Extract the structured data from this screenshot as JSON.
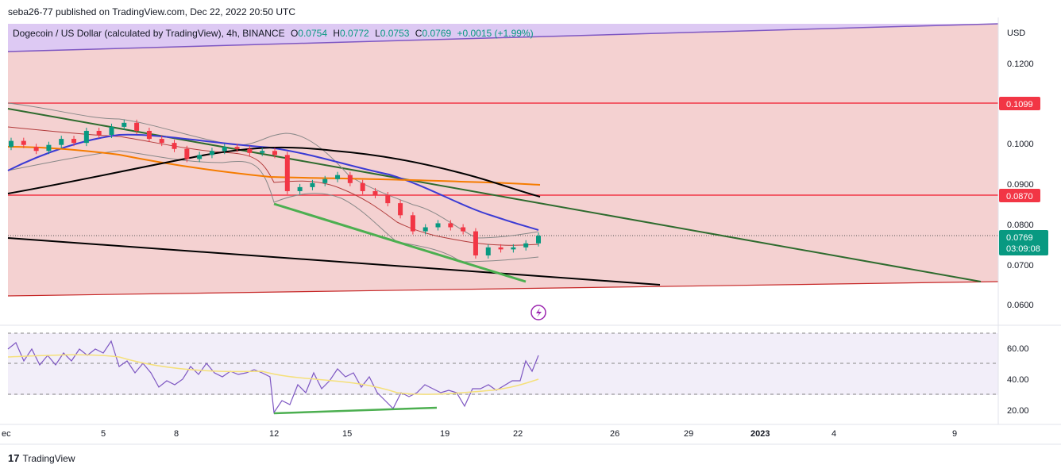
{
  "header": {
    "published": "seba26-77 published on TradingView.com, Dec 22, 2022 20:50 UTC"
  },
  "legend": {
    "title": "Dogecoin / US Dollar (calculated by TradingView), 4h, BINANCE",
    "o_label": "O",
    "o_value": "0.0754",
    "h_label": "H",
    "h_value": "0.0772",
    "l_label": "L",
    "l_value": "0.0753",
    "c_label": "C",
    "c_value": "0.0769",
    "change": "+0.0015 (+1.99%)"
  },
  "footer": {
    "brand": "TradingView",
    "logo": "17"
  },
  "colors": {
    "up": "#089981",
    "down": "#f23645",
    "pink_bg": "#f2c9c9",
    "purple_band": "#d9c3f2",
    "red_line": "#f23645",
    "green_trend": "#2e6b2e",
    "black": "#000000",
    "blue_ma": "#3b3bd4",
    "orange_ma": "#f57c00",
    "bb": "#888888",
    "rsi": "#7e57c2",
    "rsi_ma": "#f5e07a",
    "green_div": "#4caf50"
  },
  "flash_icon": "lightning-icon",
  "chart_data": [
    {
      "type": "candlestick",
      "currency_label": "USD",
      "y_ticks": [
        "0.1200",
        "0.1000",
        "0.0900",
        "0.0800",
        "0.0700",
        "0.0600"
      ],
      "x_ticks": [
        "ec",
        "5",
        "8",
        "12",
        "15",
        "19",
        "22",
        "26",
        "29",
        "2023",
        "4",
        "9"
      ],
      "price_badges": [
        {
          "value": "0.1099",
          "color": "#f23645"
        },
        {
          "value": "0.0870",
          "color": "#f23645"
        }
      ],
      "last_price": {
        "value": "0.0769",
        "countdown": "03:09:08"
      },
      "horizontal_levels": [
        0.1099,
        0.087
      ],
      "candles_approx": [
        [
          0.099,
          0.1005
        ],
        [
          0.1005,
          0.0995
        ],
        [
          0.099,
          0.098
        ],
        [
          0.098,
          0.0995
        ],
        [
          0.0995,
          0.101
        ],
        [
          0.101,
          0.1
        ],
        [
          0.1,
          0.103
        ],
        [
          0.103,
          0.102
        ],
        [
          0.102,
          0.104
        ],
        [
          0.104,
          0.105
        ],
        [
          0.105,
          0.103
        ],
        [
          0.103,
          0.101
        ],
        [
          0.101,
          0.1
        ],
        [
          0.1,
          0.0985
        ],
        [
          0.0985,
          0.096
        ],
        [
          0.096,
          0.097
        ],
        [
          0.097,
          0.098
        ],
        [
          0.098,
          0.099
        ],
        [
          0.099,
          0.0985
        ],
        [
          0.0985,
          0.0975
        ],
        [
          0.0975,
          0.098
        ],
        [
          0.098,
          0.097
        ],
        [
          0.097,
          0.088
        ],
        [
          0.088,
          0.089
        ],
        [
          0.089,
          0.09
        ],
        [
          0.09,
          0.091
        ],
        [
          0.091,
          0.092
        ],
        [
          0.092,
          0.09
        ],
        [
          0.09,
          0.088
        ],
        [
          0.088,
          0.087
        ],
        [
          0.087,
          0.085
        ],
        [
          0.085,
          0.082
        ],
        [
          0.082,
          0.078
        ],
        [
          0.078,
          0.079
        ],
        [
          0.079,
          0.08
        ],
        [
          0.08,
          0.079
        ],
        [
          0.079,
          0.078
        ],
        [
          0.078,
          0.072
        ],
        [
          0.072,
          0.074
        ],
        [
          0.074,
          0.0735
        ],
        [
          0.0735,
          0.074
        ],
        [
          0.074,
          0.075
        ],
        [
          0.075,
          0.0769
        ]
      ]
    },
    {
      "type": "line",
      "name": "RSI",
      "y_ticks": [
        "60.00",
        "40.00",
        "20.00"
      ],
      "ylim": [
        10,
        75
      ],
      "levels": [
        70,
        50,
        30
      ]
    }
  ]
}
